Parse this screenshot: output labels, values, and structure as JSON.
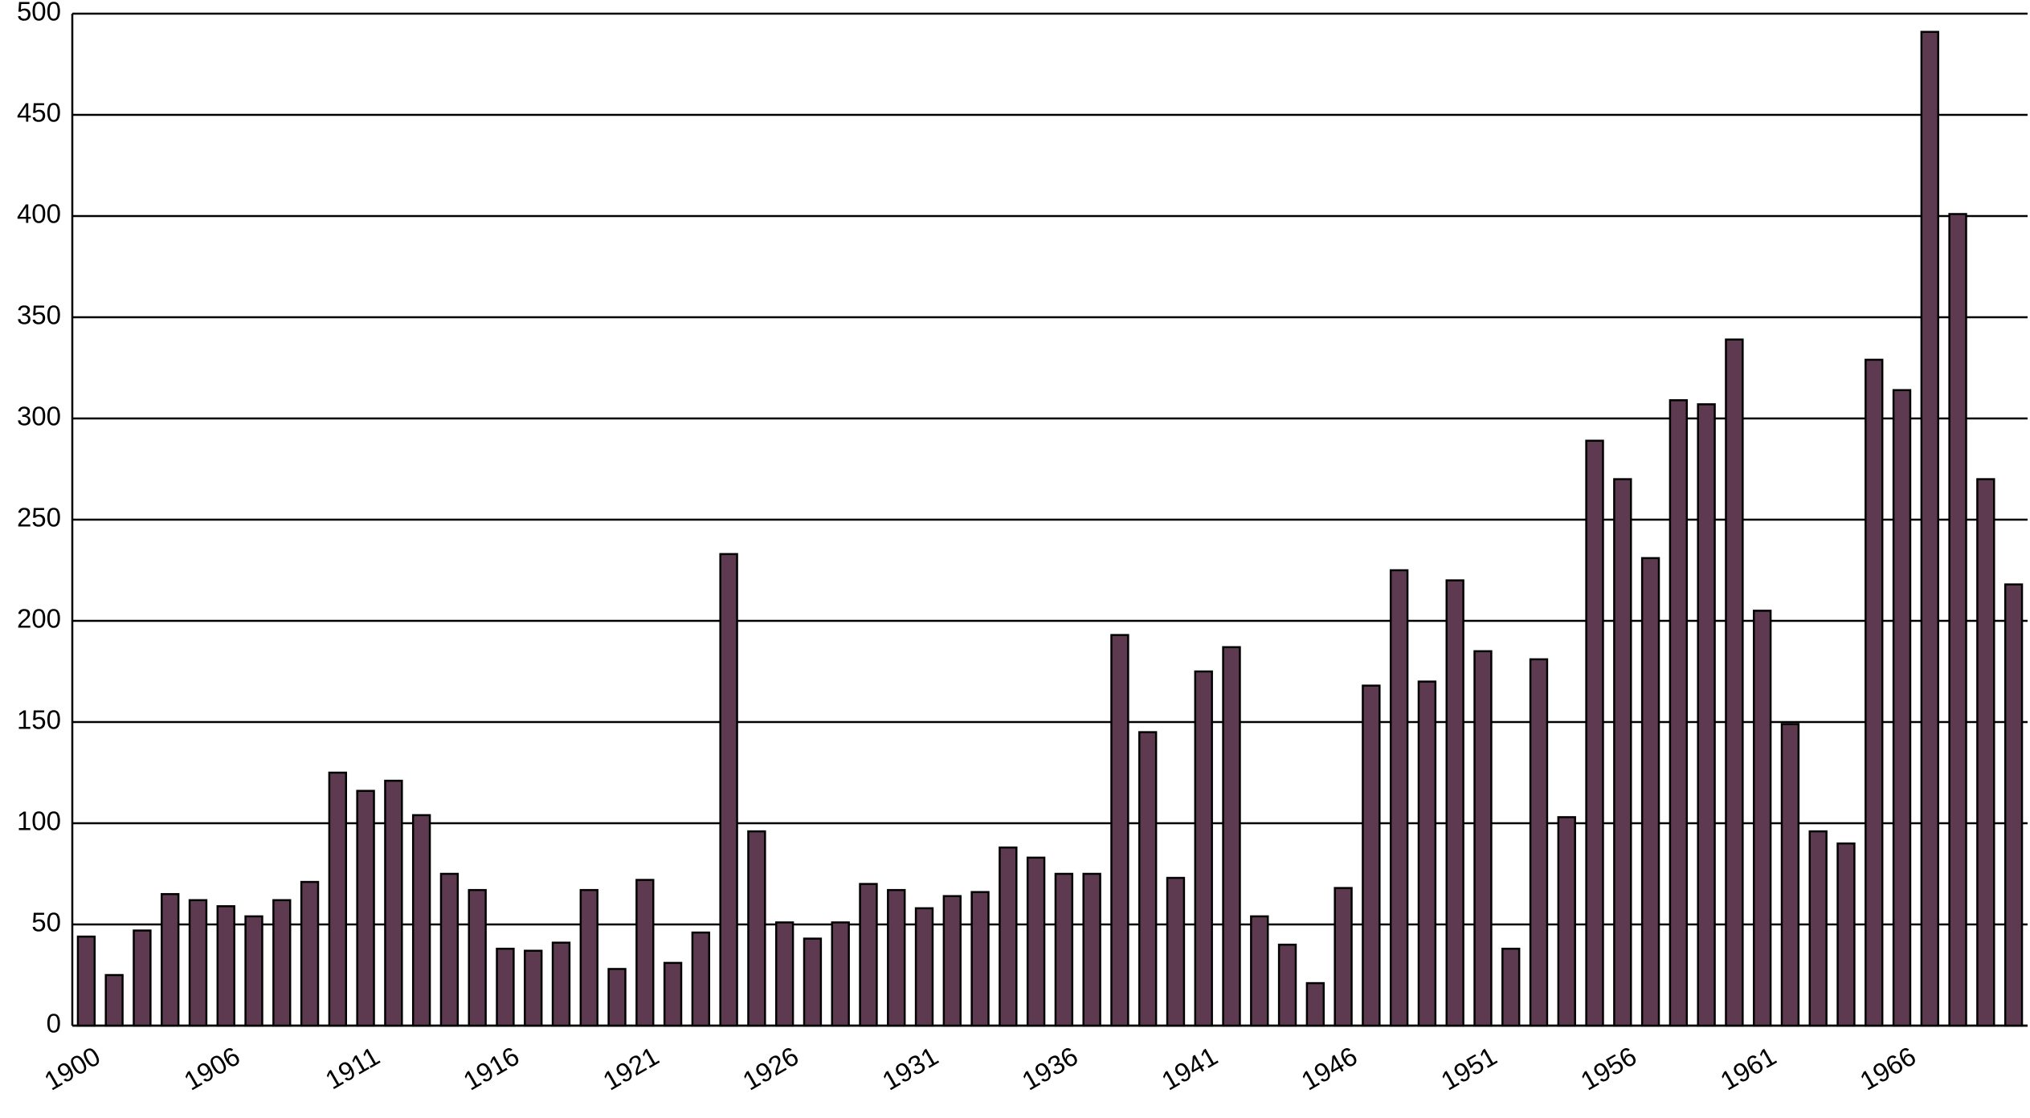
{
  "chart_data": {
    "type": "bar",
    "categories": [
      "1900",
      null,
      null,
      null,
      null,
      "1906",
      null,
      null,
      null,
      null,
      "1911",
      null,
      null,
      null,
      null,
      "1916",
      null,
      null,
      null,
      null,
      "1921",
      null,
      null,
      null,
      null,
      "1926",
      null,
      null,
      null,
      null,
      "1931",
      null,
      null,
      null,
      null,
      "1936",
      null,
      null,
      null,
      null,
      "1941",
      null,
      null,
      null,
      null,
      "1946",
      null,
      null,
      null,
      null,
      "1951",
      null,
      null,
      null,
      null,
      "1956",
      null,
      null,
      null,
      null,
      "1961",
      null,
      null,
      null,
      null,
      "1966",
      null,
      null,
      null,
      null
    ],
    "values": [
      44,
      25,
      47,
      65,
      62,
      59,
      54,
      62,
      71,
      125,
      116,
      121,
      104,
      75,
      67,
      38,
      37,
      41,
      67,
      28,
      72,
      31,
      46,
      233,
      96,
      51,
      43,
      51,
      70,
      67,
      58,
      64,
      66,
      88,
      83,
      75,
      75,
      193,
      145,
      73,
      175,
      187,
      54,
      40,
      21,
      68,
      168,
      225,
      170,
      220,
      185,
      38,
      181,
      103,
      289,
      270,
      231,
      309,
      307,
      339,
      205,
      149,
      96,
      90,
      329,
      314,
      491,
      401,
      270,
      218
    ],
    "color": "#5e3a50",
    "ylim": [
      0,
      500
    ],
    "yticks": [
      0,
      50,
      100,
      150,
      200,
      250,
      300,
      350,
      400,
      450,
      500
    ],
    "grid": true
  }
}
